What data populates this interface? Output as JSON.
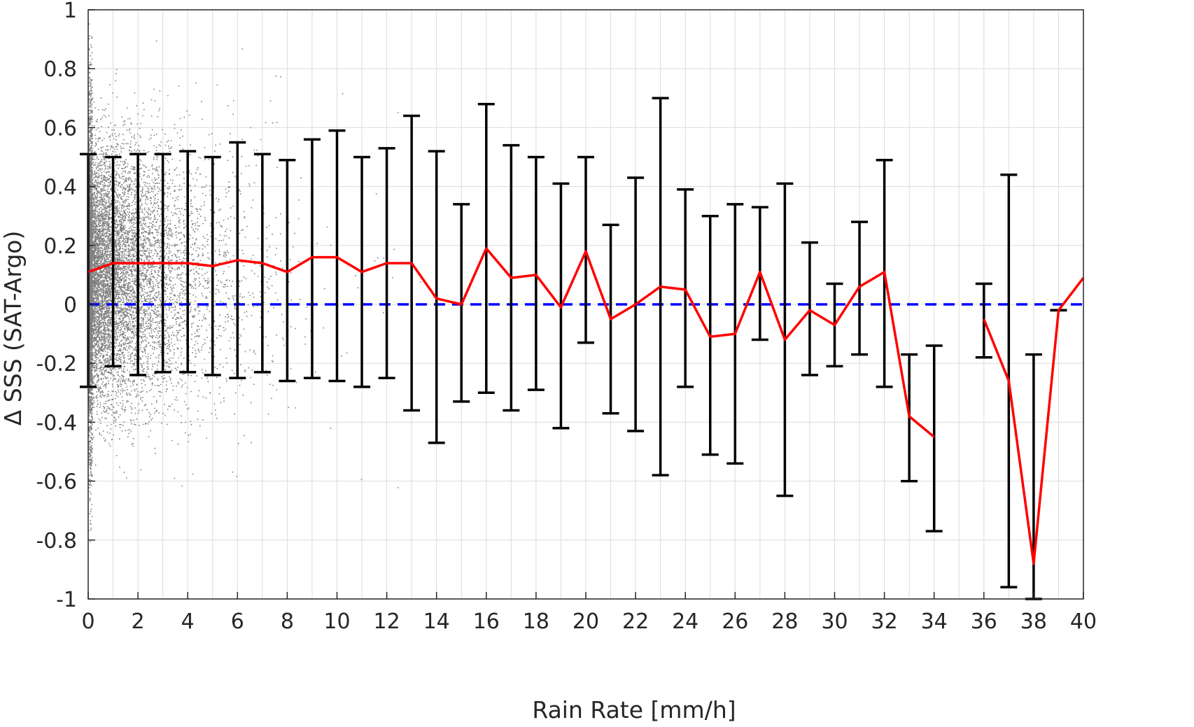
{
  "chart_data": {
    "type": "scatter",
    "xlabel": "Rain Rate [mm/h]",
    "ylabel": "Δ SSS (SAT-Argo)",
    "xlim": [
      0,
      40
    ],
    "ylim": [
      -1,
      1
    ],
    "xticks": [
      "0",
      "2",
      "4",
      "6",
      "8",
      "10",
      "12",
      "14",
      "16",
      "18",
      "20",
      "22",
      "24",
      "26",
      "28",
      "30",
      "32",
      "34",
      "36",
      "38",
      "40"
    ],
    "yticks": [
      "1",
      "0.8",
      "0.6",
      "0.4",
      "0.2",
      "0",
      "-0.2",
      "-0.4",
      "-0.6",
      "-0.8",
      "-1"
    ],
    "grid": true,
    "reference_line": {
      "y": 0,
      "style": "dashed",
      "color": "#0000ff"
    },
    "scatter_color": "#808080",
    "mean_line_color": "#ff0000",
    "errorbar_color": "#000000",
    "series": [
      {
        "kind": "errorbar",
        "x": [
          0,
          1,
          2,
          3,
          4,
          5,
          6,
          7,
          8,
          9,
          10,
          11,
          12,
          13,
          14,
          15,
          16,
          17,
          18,
          19,
          20,
          21,
          22,
          23,
          24,
          25,
          26,
          27,
          28,
          29,
          30,
          31,
          32,
          33,
          34,
          36,
          37,
          38,
          39
        ],
        "upper": [
          0.51,
          0.5,
          0.51,
          0.51,
          0.52,
          0.5,
          0.55,
          0.51,
          0.49,
          0.56,
          0.59,
          0.5,
          0.53,
          0.64,
          0.52,
          0.34,
          0.68,
          0.54,
          0.5,
          0.41,
          0.5,
          0.27,
          0.43,
          0.7,
          0.39,
          0.3,
          0.34,
          0.33,
          0.41,
          0.21,
          0.07,
          0.28,
          0.49,
          -0.17,
          -0.14,
          0.07,
          0.44,
          -0.17,
          -0.02
        ],
        "lower": [
          -0.28,
          -0.21,
          -0.24,
          -0.23,
          -0.23,
          -0.24,
          -0.25,
          -0.23,
          -0.26,
          -0.25,
          -0.26,
          -0.28,
          -0.25,
          -0.36,
          -0.47,
          -0.33,
          -0.3,
          -0.36,
          -0.29,
          -0.42,
          -0.13,
          -0.37,
          -0.43,
          -0.58,
          -0.28,
          -0.51,
          -0.54,
          -0.12,
          -0.65,
          -0.24,
          -0.21,
          -0.17,
          -0.28,
          -0.6,
          -0.77,
          -0.18,
          -0.96,
          -1.0,
          -0.02
        ]
      },
      {
        "kind": "line",
        "segments": [
          {
            "x": [
              0,
              1,
              2,
              3,
              4,
              5,
              6,
              7,
              8,
              9,
              10,
              11,
              12,
              13,
              14,
              15,
              16,
              17,
              18,
              19,
              20,
              21,
              22,
              23,
              24,
              25,
              26,
              27,
              28,
              29,
              30,
              31,
              32,
              33,
              34
            ],
            "y": [
              0.11,
              0.14,
              0.14,
              0.14,
              0.14,
              0.13,
              0.15,
              0.14,
              0.11,
              0.16,
              0.16,
              0.11,
              0.14,
              0.14,
              0.02,
              0.0,
              0.19,
              0.09,
              0.1,
              -0.01,
              0.18,
              -0.05,
              0.0,
              0.06,
              0.05,
              -0.11,
              -0.1,
              0.11,
              -0.12,
              -0.02,
              -0.07,
              0.06,
              0.11,
              -0.38,
              -0.45
            ]
          },
          {
            "x": [
              36,
              37,
              38,
              39,
              40
            ],
            "y": [
              -0.05,
              -0.26,
              -0.88,
              -0.02,
              0.09
            ]
          }
        ]
      }
    ]
  }
}
